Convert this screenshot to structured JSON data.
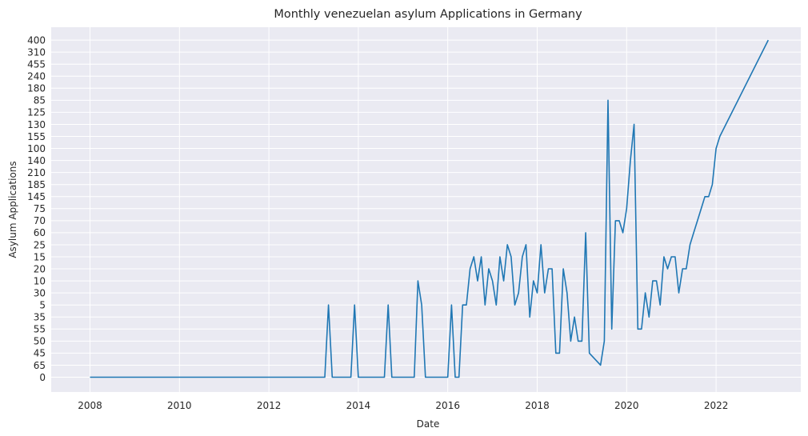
{
  "chart_data": {
    "type": "line",
    "title": "Monthly venezuelan asylum Applications in Germany",
    "xlabel": "Date",
    "ylabel": "Asylum Applications",
    "grid": true,
    "plot_background": "#eaeaf2",
    "line_color": "#1f77b4",
    "x_ticks": [
      "2008",
      "2010",
      "2012",
      "2014",
      "2016",
      "2018",
      "2020",
      "2022"
    ],
    "y_categories_note": "The y-axis is categorical: tick labels appear in this order from bottom to top.",
    "y_categories": [
      "0",
      "65",
      "45",
      "50",
      "55",
      "35",
      "5",
      "30",
      "10",
      "20",
      "15",
      "25",
      "60",
      "70",
      "75",
      "145",
      "185",
      "210",
      "140",
      "100",
      "155",
      "130",
      "125",
      "85",
      "180",
      "240",
      "455",
      "310",
      "400"
    ],
    "series": [
      {
        "x": [
          "2008-01",
          "2013-04",
          "2013-05",
          "2013-06",
          "2013-11",
          "2013-12",
          "2014-01",
          "2014-08",
          "2014-09",
          "2014-10",
          "2015-04",
          "2015-05",
          "2015-06",
          "2015-07",
          "2016-01",
          "2016-02",
          "2016-03",
          "2016-04",
          "2016-05",
          "2016-06",
          "2016-07",
          "2016-08",
          "2016-09",
          "2016-10",
          "2016-11",
          "2016-12",
          "2017-01",
          "2017-02",
          "2017-03",
          "2017-04",
          "2017-05",
          "2017-06",
          "2017-07",
          "2017-08",
          "2017-09",
          "2017-10",
          "2017-11",
          "2017-12",
          "2018-01",
          "2018-02",
          "2018-03",
          "2018-04",
          "2018-05",
          "2018-06",
          "2018-07",
          "2018-08",
          "2018-09",
          "2018-10",
          "2018-11",
          "2018-12",
          "2019-01",
          "2019-02",
          "2019-03",
          "2019-06",
          "2019-07",
          "2019-08",
          "2019-09",
          "2019-10",
          "2019-11",
          "2019-12",
          "2020-01",
          "2020-02",
          "2020-03",
          "2020-04",
          "2020-05",
          "2020-06",
          "2020-07",
          "2020-08",
          "2020-09",
          "2020-10",
          "2020-11",
          "2020-12",
          "2021-01",
          "2021-02",
          "2021-03",
          "2021-04",
          "2021-05",
          "2021-06",
          "2021-07",
          "2021-08",
          "2021-09",
          "2021-10",
          "2021-11",
          "2021-12",
          "2022-01",
          "2022-02",
          "2023-03"
        ],
        "y": [
          "0",
          "0",
          "5",
          "0",
          "0",
          "5",
          "0",
          "0",
          "5",
          "0",
          "0",
          "10",
          "5",
          "0",
          "0",
          "5",
          "0",
          "0",
          "5",
          "5",
          "20",
          "15",
          "10",
          "15",
          "5",
          "20",
          "10",
          "5",
          "15",
          "10",
          "25",
          "15",
          "5",
          "30",
          "15",
          "25",
          "35",
          "10",
          "30",
          "25",
          "30",
          "20",
          "20",
          "45",
          "45",
          "20",
          "30",
          "50",
          "35",
          "50",
          "50",
          "60",
          "45",
          "65",
          "50",
          "85",
          "55",
          "70",
          "70",
          "60",
          "75",
          "140",
          "130",
          "55",
          "55",
          "30",
          "35",
          "10",
          "10",
          "5",
          "15",
          "20",
          "15",
          "15",
          "30",
          "20",
          "20",
          "25",
          "60",
          "70",
          "75",
          "145",
          "145",
          "185",
          "100",
          "155",
          "400"
        ]
      }
    ]
  }
}
